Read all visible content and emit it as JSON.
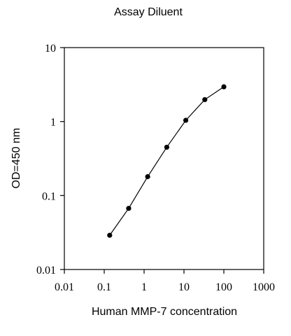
{
  "chart_data": {
    "type": "scatter",
    "title": "Assay Diluent",
    "xlabel": "Human MMP-7 concentration",
    "ylabel": "OD=450 nm",
    "x_scale": "log",
    "y_scale": "log",
    "xlim": [
      0.01,
      1000
    ],
    "ylim": [
      0.01,
      10
    ],
    "x_ticks": [
      "0.01",
      "0.1",
      "1",
      "10",
      "100",
      "1000"
    ],
    "y_ticks": [
      "0.01",
      "0.1",
      "1",
      "10"
    ],
    "grid": false,
    "legend": "none",
    "series": [
      {
        "x": [
          0.137,
          0.41,
          1.23,
          3.7,
          11.1,
          33.3,
          100
        ],
        "y": [
          0.029,
          0.067,
          0.18,
          0.45,
          1.04,
          1.98,
          2.95
        ]
      }
    ]
  }
}
